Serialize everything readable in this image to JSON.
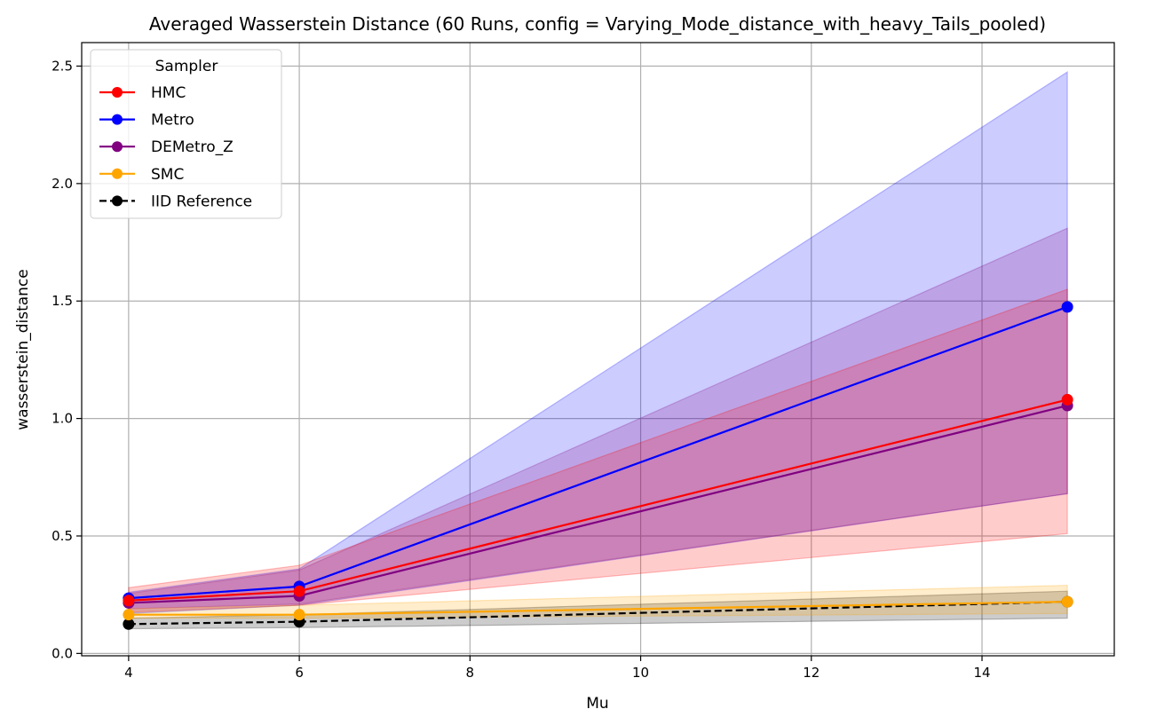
{
  "chart_data": {
    "type": "line",
    "title": "Averaged Wasserstein Distance (60 Runs, config = Varying_Mode_distance_with_heavy_Tails_pooled)",
    "xlabel": "Mu",
    "ylabel": "wasserstein_distance",
    "xlim": [
      3.45,
      15.55
    ],
    "ylim": [
      -0.01,
      2.6
    ],
    "xticks": [
      4,
      6,
      8,
      10,
      12,
      14
    ],
    "yticks": [
      0.0,
      0.5,
      1.0,
      1.5,
      2.0,
      2.5
    ],
    "xtick_labels": [
      "4",
      "6",
      "8",
      "10",
      "12",
      "14"
    ],
    "ytick_labels": [
      "0.0",
      "0.5",
      "1.0",
      "1.5",
      "2.0",
      "2.5"
    ],
    "grid": true,
    "legend": {
      "title": "Sampler",
      "placement": "top-left"
    },
    "x": [
      4,
      6,
      15
    ],
    "series": [
      {
        "name": "Metro",
        "color": "#0000ff",
        "dashed": false,
        "values": [
          0.235,
          0.285,
          1.475
        ],
        "band_lower": [
          0.17,
          0.205,
          0.68
        ],
        "band_upper": [
          0.26,
          0.36,
          2.475
        ]
      },
      {
        "name": "DEMetro_Z",
        "color": "#800080",
        "dashed": false,
        "values": [
          0.215,
          0.245,
          1.055
        ],
        "band_lower": [
          0.19,
          0.21,
          0.68
        ],
        "band_upper": [
          0.255,
          0.355,
          1.81
        ]
      },
      {
        "name": "HMC",
        "color": "#ff0000",
        "dashed": false,
        "values": [
          0.225,
          0.265,
          1.08
        ],
        "band_lower": [
          0.175,
          0.205,
          0.51
        ],
        "band_upper": [
          0.28,
          0.375,
          1.55
        ]
      },
      {
        "name": "IID Reference",
        "color": "#000000",
        "dashed": true,
        "values": [
          0.125,
          0.135,
          0.22
        ],
        "band_lower": [
          0.105,
          0.11,
          0.15
        ],
        "band_upper": [
          0.15,
          0.165,
          0.265
        ]
      },
      {
        "name": "SMC",
        "color": "#ffa500",
        "dashed": false,
        "values": [
          0.165,
          0.165,
          0.22
        ],
        "band_lower": [
          0.15,
          0.15,
          0.17
        ],
        "band_upper": [
          0.19,
          0.205,
          0.29
        ]
      }
    ],
    "legend_order": [
      "HMC",
      "Metro",
      "DEMetro_Z",
      "SMC",
      "IID Reference"
    ]
  }
}
